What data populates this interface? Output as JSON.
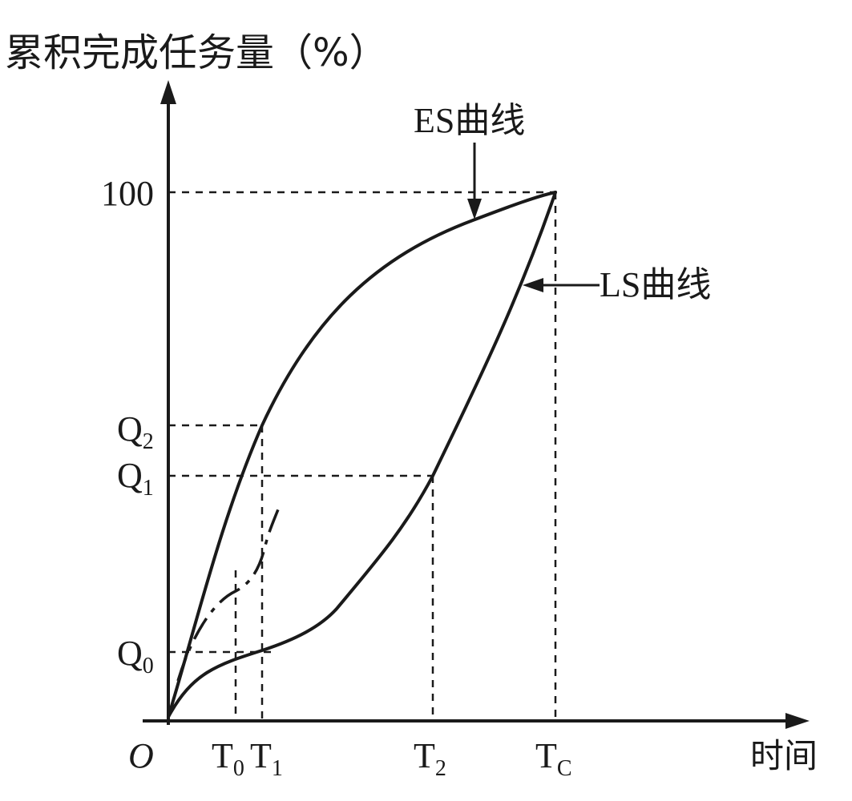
{
  "axes": {
    "y_title": "累积完成任务量（%）",
    "x_title": "时间",
    "origin": "O"
  },
  "y_ticks": {
    "full": "100",
    "q2": {
      "base": "Q",
      "sub": "2"
    },
    "q1": {
      "base": "Q",
      "sub": "1"
    },
    "q0": {
      "base": "Q",
      "sub": "0"
    }
  },
  "x_ticks": {
    "t0": {
      "base": "T",
      "sub": "0"
    },
    "t1": {
      "base": "T",
      "sub": "1"
    },
    "t2": {
      "base": "T",
      "sub": "2"
    },
    "tc": {
      "base": "T",
      "sub": "C"
    }
  },
  "curves": {
    "es_label": "ES曲线",
    "ls_label": "LS曲线"
  }
}
